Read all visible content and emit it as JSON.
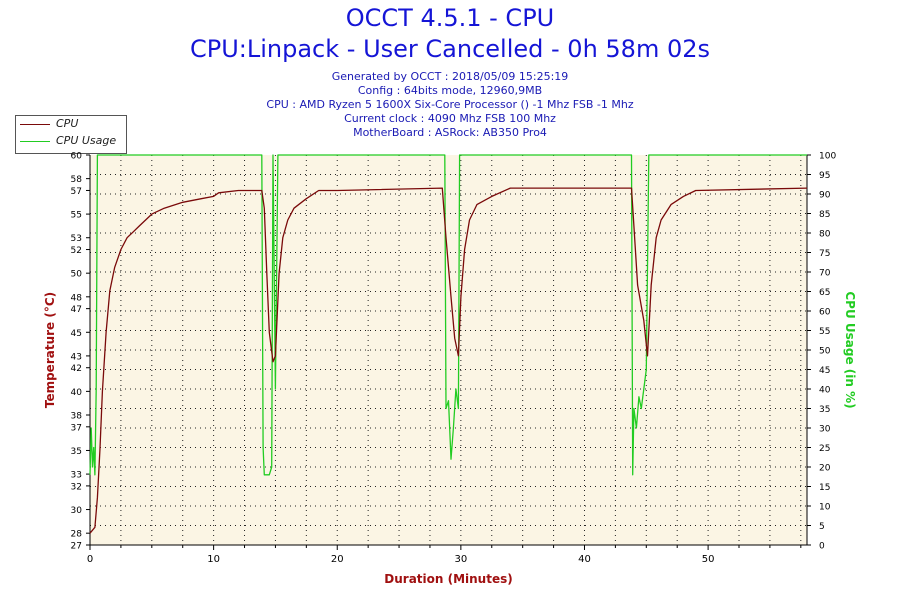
{
  "header": {
    "title": "OCCT 4.5.1 - CPU",
    "subtitle": "CPU:Linpack - User Cancelled - 0h 58m 02s",
    "info_lines": [
      "Generated by OCCT : 2018/05/09 15:25:19",
      "Config : 64bits mode, 12960,9MB",
      "CPU : AMD Ryzen 5 1600X Six-Core Processor () -1 Mhz FSB -1 Mhz",
      "Current clock : 4090 Mhz FSB 100 Mhz",
      "MotherBoard : ASRock: AB350 Pro4"
    ]
  },
  "legend": {
    "items": [
      {
        "label": "CPU",
        "color": "#7a0a0a"
      },
      {
        "label": "CPU Usage",
        "color": "#22cc22"
      }
    ]
  },
  "chart_data": {
    "type": "line",
    "xlabel": "Duration (Minutes)",
    "ylabel_left": "Temperature (°C)",
    "ylabel_right": "CPU Usage (in %)",
    "xlim": [
      0,
      58
    ],
    "ylim_left": [
      27,
      60
    ],
    "ylim_right": [
      0,
      100
    ],
    "x_ticks": [
      0,
      10,
      20,
      30,
      40,
      50
    ],
    "y_ticks_left": [
      27,
      28,
      30,
      32,
      33,
      35,
      37,
      38,
      40,
      42,
      43,
      45,
      47,
      48,
      50,
      52,
      53,
      55,
      57,
      58,
      60
    ],
    "y_ticks_right": [
      0,
      5,
      10,
      15,
      20,
      25,
      30,
      35,
      40,
      45,
      50,
      55,
      60,
      65,
      70,
      75,
      80,
      85,
      90,
      95,
      100
    ],
    "grid": true,
    "background": "#fbf5e4",
    "series": [
      {
        "name": "CPU",
        "axis": "left",
        "color": "#7a0a0a",
        "points": [
          [
            0,
            28
          ],
          [
            0.4,
            28.5
          ],
          [
            0.6,
            31
          ],
          [
            0.8,
            35
          ],
          [
            1.0,
            40
          ],
          [
            1.3,
            45
          ],
          [
            1.6,
            48.5
          ],
          [
            2.0,
            50.5
          ],
          [
            2.5,
            52
          ],
          [
            3.0,
            53
          ],
          [
            3.5,
            53.5
          ],
          [
            4.0,
            54
          ],
          [
            5.0,
            55
          ],
          [
            6.0,
            55.5
          ],
          [
            7.5,
            56
          ],
          [
            9.0,
            56.3
          ],
          [
            10.0,
            56.5
          ],
          [
            10.4,
            56.8
          ],
          [
            12.0,
            57
          ],
          [
            13.9,
            57
          ],
          [
            14.1,
            55.5
          ],
          [
            14.3,
            50
          ],
          [
            14.5,
            45
          ],
          [
            14.8,
            42.5
          ],
          [
            15.0,
            43
          ],
          [
            15.3,
            50
          ],
          [
            15.6,
            53
          ],
          [
            16.0,
            54.5
          ],
          [
            16.5,
            55.5
          ],
          [
            17.5,
            56.3
          ],
          [
            18.5,
            57
          ],
          [
            20.0,
            57
          ],
          [
            28.5,
            57.2
          ],
          [
            28.8,
            53
          ],
          [
            29.2,
            48
          ],
          [
            29.5,
            44.5
          ],
          [
            29.8,
            43
          ],
          [
            30.0,
            48
          ],
          [
            30.3,
            52
          ],
          [
            30.7,
            54.5
          ],
          [
            31.3,
            55.8
          ],
          [
            32.5,
            56.5
          ],
          [
            34.0,
            57.2
          ],
          [
            43.8,
            57.2
          ],
          [
            44.0,
            54
          ],
          [
            44.3,
            49
          ],
          [
            44.8,
            46
          ],
          [
            45.1,
            43
          ],
          [
            45.4,
            49
          ],
          [
            45.8,
            53
          ],
          [
            46.2,
            54.5
          ],
          [
            47.0,
            55.8
          ],
          [
            48.0,
            56.5
          ],
          [
            49.0,
            57
          ],
          [
            58.0,
            57.2
          ]
        ]
      },
      {
        "name": "CPU Usage",
        "axis": "right",
        "color": "#22cc22",
        "points": [
          [
            0,
            18
          ],
          [
            0.1,
            30
          ],
          [
            0.2,
            20
          ],
          [
            0.3,
            25
          ],
          [
            0.4,
            18
          ],
          [
            0.5,
            40
          ],
          [
            0.6,
            100
          ],
          [
            13.9,
            100
          ],
          [
            14.0,
            25
          ],
          [
            14.1,
            18
          ],
          [
            14.5,
            18
          ],
          [
            14.7,
            20
          ],
          [
            14.8,
            100
          ],
          [
            15.0,
            40
          ],
          [
            15.2,
            100
          ],
          [
            28.7,
            100
          ],
          [
            28.8,
            35
          ],
          [
            29.0,
            37
          ],
          [
            29.2,
            22
          ],
          [
            29.4,
            30
          ],
          [
            29.6,
            40
          ],
          [
            29.8,
            35
          ],
          [
            29.9,
            100
          ],
          [
            30.0,
            100
          ],
          [
            43.8,
            100
          ],
          [
            43.9,
            18
          ],
          [
            44.0,
            35
          ],
          [
            44.2,
            30
          ],
          [
            44.4,
            38
          ],
          [
            44.6,
            35
          ],
          [
            44.8,
            40
          ],
          [
            45.0,
            45
          ],
          [
            45.2,
            100
          ],
          [
            58.0,
            100
          ]
        ]
      }
    ]
  }
}
